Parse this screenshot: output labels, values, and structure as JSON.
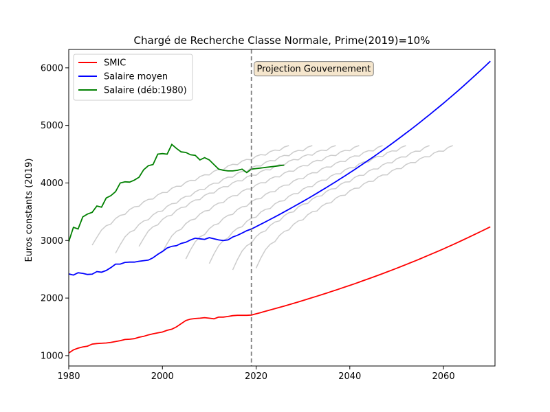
{
  "chart_data": {
    "type": "line",
    "title": "Chargé de Recherche Classe Normale, Prime(2019)=10%",
    "xlabel": "",
    "ylabel": "Euros constants (2019)",
    "xlim": [
      1980,
      2071
    ],
    "ylim": [
      820,
      6320
    ],
    "x_ticks": [
      1980,
      2000,
      2020,
      2040,
      2060
    ],
    "y_ticks": [
      1000,
      2000,
      3000,
      4000,
      5000,
      6000
    ],
    "grid": false,
    "legend_position": "top-left",
    "annotation": {
      "text": "Projection Gouvernement",
      "x": 2020,
      "y": 5990
    },
    "vline": {
      "x": 2019,
      "style": "dashed",
      "color": "#808080"
    },
    "series": [
      {
        "name": "SMIC",
        "color": "#ff0000",
        "kind": "historical+projection",
        "x": [
          1980,
          1981,
          1982,
          1983,
          1984,
          1985,
          1986,
          1987,
          1988,
          1989,
          1990,
          1991,
          1992,
          1993,
          1994,
          1995,
          1996,
          1997,
          1998,
          1999,
          2000,
          2001,
          2002,
          2003,
          2004,
          2005,
          2006,
          2007,
          2008,
          2009,
          2010,
          2011,
          2012,
          2013,
          2014,
          2015,
          2016,
          2017,
          2018,
          2019
        ],
        "y": [
          1045,
          1100,
          1130,
          1150,
          1165,
          1200,
          1210,
          1215,
          1220,
          1230,
          1245,
          1260,
          1280,
          1285,
          1295,
          1320,
          1335,
          1360,
          1380,
          1395,
          1410,
          1440,
          1460,
          1500,
          1555,
          1610,
          1635,
          1645,
          1650,
          1660,
          1650,
          1640,
          1670,
          1670,
          1680,
          1695,
          1700,
          1700,
          1700,
          1705
        ],
        "projection_growth_per_year": 0.01266,
        "projection_end_year": 2070,
        "projection_end_value": 3250
      },
      {
        "name": "Salaire moyen",
        "color": "#0000ff",
        "kind": "historical+projection",
        "x": [
          1980,
          1981,
          1982,
          1983,
          1984,
          1985,
          1986,
          1987,
          1988,
          1989,
          1990,
          1991,
          1992,
          1993,
          1994,
          1995,
          1996,
          1997,
          1998,
          1999,
          2000,
          2001,
          2002,
          2003,
          2004,
          2005,
          2006,
          2007,
          2008,
          2009,
          2010,
          2011,
          2012,
          2013,
          2014,
          2015,
          2016,
          2017,
          2018,
          2019
        ],
        "y": [
          2420,
          2400,
          2440,
          2430,
          2410,
          2415,
          2460,
          2450,
          2480,
          2530,
          2590,
          2590,
          2620,
          2625,
          2625,
          2640,
          2650,
          2660,
          2700,
          2760,
          2810,
          2870,
          2900,
          2910,
          2950,
          2970,
          3010,
          3040,
          3030,
          3020,
          3050,
          3030,
          3010,
          3000,
          3010,
          3060,
          3090,
          3130,
          3170,
          3200
        ],
        "projection_growth_per_year": 0.01278,
        "projection_end_year": 2070,
        "projection_end_value": 6080
      },
      {
        "name": "Salaire (déb:1980)",
        "color": "#008000",
        "kind": "historical",
        "x": [
          1980,
          1981,
          1982,
          1983,
          1984,
          1985,
          1986,
          1987,
          1988,
          1989,
          1990,
          1991,
          1992,
          1993,
          1994,
          1995,
          1996,
          1997,
          1998,
          1999,
          2000,
          2001,
          2002,
          2003,
          2004,
          2005,
          2006,
          2007,
          2008,
          2009,
          2010,
          2011,
          2012,
          2013,
          2014,
          2015,
          2016,
          2017,
          2018,
          2019,
          2020,
          2021,
          2022,
          2023,
          2024,
          2025,
          2026
        ],
        "y": [
          2980,
          3230,
          3200,
          3410,
          3460,
          3490,
          3600,
          3580,
          3740,
          3780,
          3850,
          4000,
          4020,
          4015,
          4050,
          4100,
          4230,
          4300,
          4320,
          4500,
          4510,
          4500,
          4670,
          4600,
          4540,
          4530,
          4490,
          4480,
          4400,
          4440,
          4400,
          4320,
          4240,
          4220,
          4210,
          4210,
          4220,
          4240,
          4180,
          4240,
          4250,
          4260,
          4270,
          4280,
          4290,
          4300,
          4310
        ]
      }
    ],
    "background_cohorts": {
      "color": "#cccccc",
      "start_years": [
        1985,
        1990,
        1995,
        2000,
        2005,
        2010,
        2015,
        2020
      ],
      "start_values": [
        2920,
        2780,
        2900,
        2800,
        2680,
        2600,
        2490,
        2520
      ],
      "curve_years": 42,
      "plateau_value": 4650,
      "end_year_max": 2066
    }
  }
}
